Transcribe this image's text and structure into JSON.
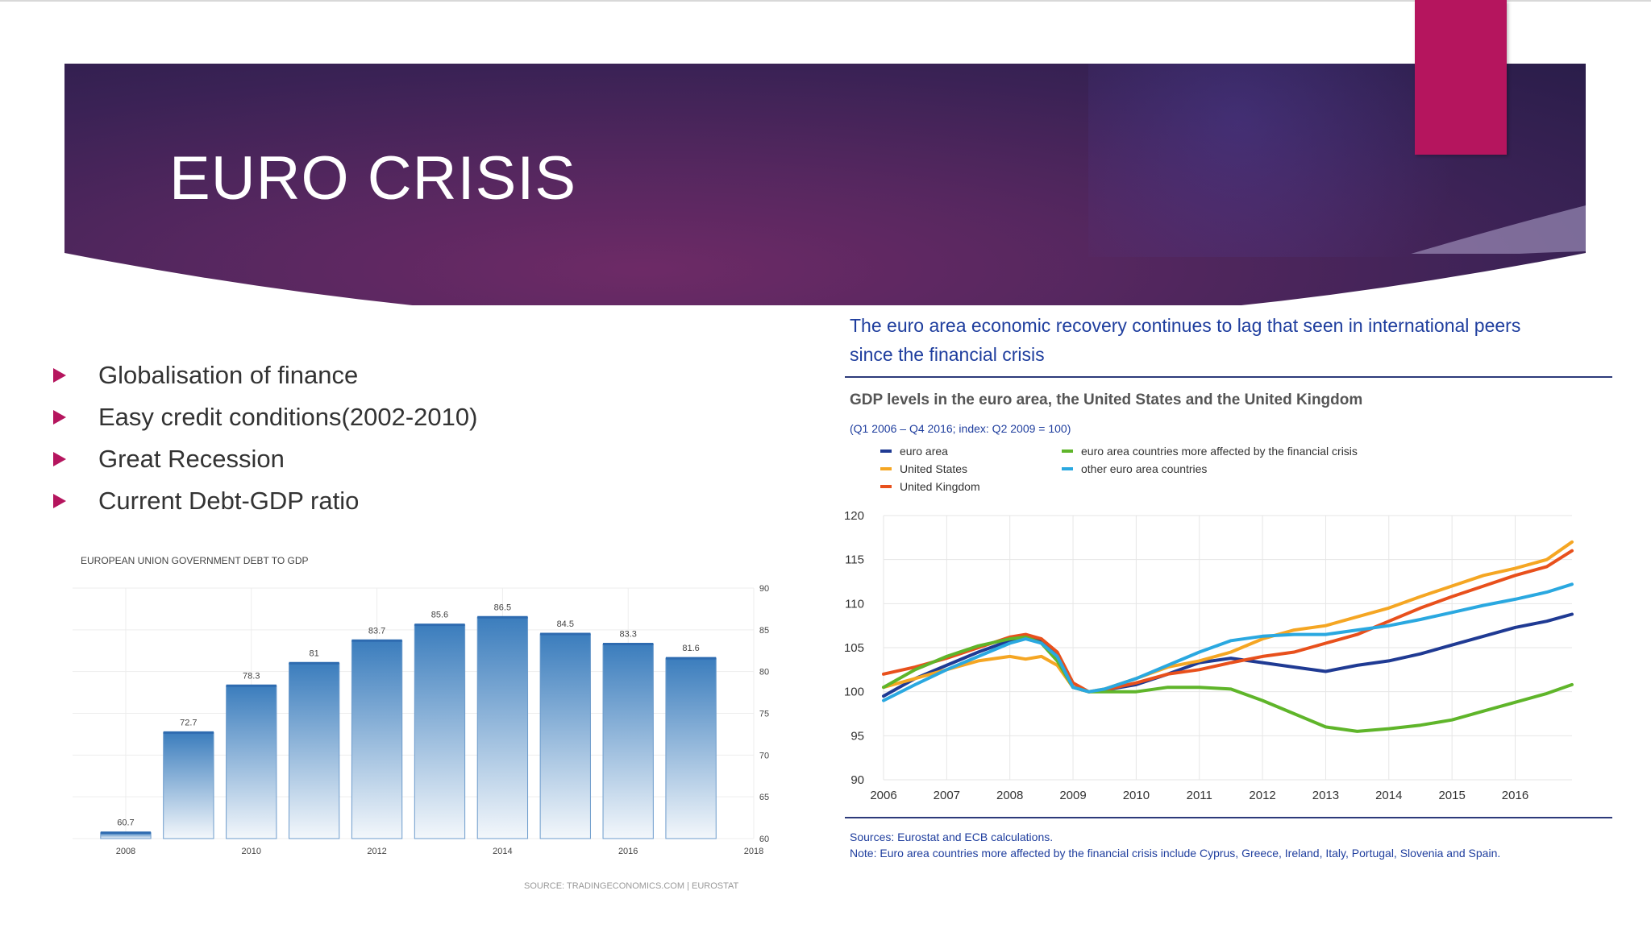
{
  "slide": {
    "title": "EURO CRISIS",
    "bullets": [
      "Globalisation of finance",
      "Easy credit conditions(2002-2010)",
      "Great Recession",
      "Current Debt-GDP ratio"
    ],
    "colors": {
      "accent": "#b5155e",
      "banner": "#4a2458"
    }
  },
  "chart_data": [
    {
      "type": "bar",
      "title": "EUROPEAN UNION GOVERNMENT DEBT TO GDP",
      "source": "SOURCE: TRADINGECONOMICS.COM | EUROSTAT",
      "categories": [
        "2008",
        "2009",
        "2010",
        "2011",
        "2012",
        "2013",
        "2014",
        "2015",
        "2016",
        "2017"
      ],
      "values": [
        60.7,
        72.7,
        78.3,
        81,
        83.7,
        85.6,
        86.5,
        84.5,
        83.3,
        81.6
      ],
      "value_labels": [
        "60.7",
        "72.7",
        "78.3",
        "81",
        "83.7",
        "85.6",
        "86.5",
        "84.5",
        "83.3",
        "81.6"
      ],
      "x_tick_labels": [
        "2008",
        "2010",
        "2012",
        "2014",
        "2016",
        "2018"
      ],
      "y_ticks": [
        60,
        65,
        70,
        75,
        80,
        85,
        90
      ],
      "ylim": [
        60,
        90
      ],
      "y_axis_side": "right",
      "grid": true,
      "color": "#3b7dbd"
    },
    {
      "type": "line",
      "headline": "The euro area economic recovery continues to lag that seen in international peers since the financial crisis",
      "title": "GDP levels in the euro area, the United States and the United Kingdom",
      "subtitle": "(Q1 2006 – Q4 2016; index: Q2 2009 = 100)",
      "sources": "Sources: Eurostat and ECB calculations.",
      "note": "Note: Euro area countries more affected by the financial crisis include Cyprus, Greece, Ireland, Italy, Portugal, Slovenia and Spain.",
      "xlim": [
        2006,
        2016.9
      ],
      "ylim": [
        90,
        120
      ],
      "x_ticks": [
        2006,
        2007,
        2008,
        2009,
        2010,
        2011,
        2012,
        2013,
        2014,
        2015,
        2016
      ],
      "y_ticks": [
        90,
        95,
        100,
        105,
        110,
        115,
        120
      ],
      "grid": true,
      "series": [
        {
          "name": "euro area",
          "color": "#1f3a93",
          "points": [
            [
              2006,
              99.5
            ],
            [
              2006.5,
              101.5
            ],
            [
              2007,
              103
            ],
            [
              2007.5,
              104.5
            ],
            [
              2008,
              105.8
            ],
            [
              2008.25,
              106.2
            ],
            [
              2008.5,
              105.8
            ],
            [
              2008.75,
              104
            ],
            [
              2009,
              100.5
            ],
            [
              2009.25,
              100
            ],
            [
              2009.5,
              100.2
            ],
            [
              2010,
              100.8
            ],
            [
              2010.5,
              102
            ],
            [
              2011,
              103.3
            ],
            [
              2011.5,
              103.8
            ],
            [
              2012,
              103.3
            ],
            [
              2012.5,
              102.8
            ],
            [
              2013,
              102.3
            ],
            [
              2013.5,
              103
            ],
            [
              2014,
              103.5
            ],
            [
              2014.5,
              104.3
            ],
            [
              2015,
              105.3
            ],
            [
              2015.5,
              106.3
            ],
            [
              2016,
              107.3
            ],
            [
              2016.5,
              108
            ],
            [
              2016.9,
              108.8
            ]
          ]
        },
        {
          "name": "United States",
          "color": "#f5a623",
          "points": [
            [
              2006,
              100.5
            ],
            [
              2006.5,
              101.5
            ],
            [
              2007,
              102.5
            ],
            [
              2007.5,
              103.5
            ],
            [
              2008,
              104
            ],
            [
              2008.25,
              103.7
            ],
            [
              2008.5,
              104
            ],
            [
              2008.75,
              103
            ],
            [
              2009,
              100.5
            ],
            [
              2009.25,
              100
            ],
            [
              2009.5,
              100.3
            ],
            [
              2010,
              101.5
            ],
            [
              2010.5,
              102.8
            ],
            [
              2011,
              103.5
            ],
            [
              2011.5,
              104.5
            ],
            [
              2012,
              106
            ],
            [
              2012.5,
              107
            ],
            [
              2013,
              107.5
            ],
            [
              2013.5,
              108.5
            ],
            [
              2014,
              109.5
            ],
            [
              2014.5,
              110.8
            ],
            [
              2015,
              112
            ],
            [
              2015.5,
              113.2
            ],
            [
              2016,
              114
            ],
            [
              2016.5,
              115
            ],
            [
              2016.9,
              117
            ]
          ]
        },
        {
          "name": "United Kingdom",
          "color": "#e8501c",
          "points": [
            [
              2006,
              102
            ],
            [
              2006.5,
              102.8
            ],
            [
              2007,
              103.8
            ],
            [
              2007.5,
              105
            ],
            [
              2008,
              106.2
            ],
            [
              2008.25,
              106.5
            ],
            [
              2008.5,
              106
            ],
            [
              2008.75,
              104.5
            ],
            [
              2009,
              101
            ],
            [
              2009.25,
              100
            ],
            [
              2009.5,
              100.2
            ],
            [
              2010,
              101
            ],
            [
              2010.5,
              102
            ],
            [
              2011,
              102.5
            ],
            [
              2011.5,
              103.3
            ],
            [
              2012,
              104
            ],
            [
              2012.5,
              104.5
            ],
            [
              2013,
              105.5
            ],
            [
              2013.5,
              106.5
            ],
            [
              2014,
              108
            ],
            [
              2014.5,
              109.5
            ],
            [
              2015,
              110.8
            ],
            [
              2015.5,
              112
            ],
            [
              2016,
              113.2
            ],
            [
              2016.5,
              114.2
            ],
            [
              2016.9,
              116
            ]
          ]
        },
        {
          "name": "euro area countries more affected by the financial crisis",
          "color": "#5fb52a",
          "points": [
            [
              2006,
              100.5
            ],
            [
              2006.5,
              102.5
            ],
            [
              2007,
              104
            ],
            [
              2007.5,
              105.2
            ],
            [
              2008,
              106
            ],
            [
              2008.25,
              106.2
            ],
            [
              2008.5,
              105.5
            ],
            [
              2008.75,
              103.5
            ],
            [
              2009,
              100.5
            ],
            [
              2009.25,
              100
            ],
            [
              2009.5,
              100
            ],
            [
              2010,
              100
            ],
            [
              2010.5,
              100.5
            ],
            [
              2011,
              100.5
            ],
            [
              2011.5,
              100.3
            ],
            [
              2012,
              99
            ],
            [
              2012.5,
              97.5
            ],
            [
              2013,
              96
            ],
            [
              2013.5,
              95.5
            ],
            [
              2014,
              95.8
            ],
            [
              2014.5,
              96.2
            ],
            [
              2015,
              96.8
            ],
            [
              2015.5,
              97.8
            ],
            [
              2016,
              98.8
            ],
            [
              2016.5,
              99.8
            ],
            [
              2016.9,
              100.8
            ]
          ]
        },
        {
          "name": "other euro area countries",
          "color": "#2aa8e0",
          "points": [
            [
              2006,
              99
            ],
            [
              2006.5,
              100.8
            ],
            [
              2007,
              102.5
            ],
            [
              2007.5,
              104
            ],
            [
              2008,
              105.5
            ],
            [
              2008.25,
              106
            ],
            [
              2008.5,
              105.5
            ],
            [
              2008.75,
              104
            ],
            [
              2009,
              100.5
            ],
            [
              2009.25,
              100
            ],
            [
              2009.5,
              100.3
            ],
            [
              2010,
              101.5
            ],
            [
              2010.5,
              103
            ],
            [
              2011,
              104.5
            ],
            [
              2011.5,
              105.8
            ],
            [
              2012,
              106.3
            ],
            [
              2012.5,
              106.5
            ],
            [
              2013,
              106.5
            ],
            [
              2013.5,
              107
            ],
            [
              2014,
              107.5
            ],
            [
              2014.5,
              108.2
            ],
            [
              2015,
              109
            ],
            [
              2015.5,
              109.8
            ],
            [
              2016,
              110.5
            ],
            [
              2016.5,
              111.3
            ],
            [
              2016.9,
              112.2
            ]
          ]
        }
      ]
    }
  ]
}
